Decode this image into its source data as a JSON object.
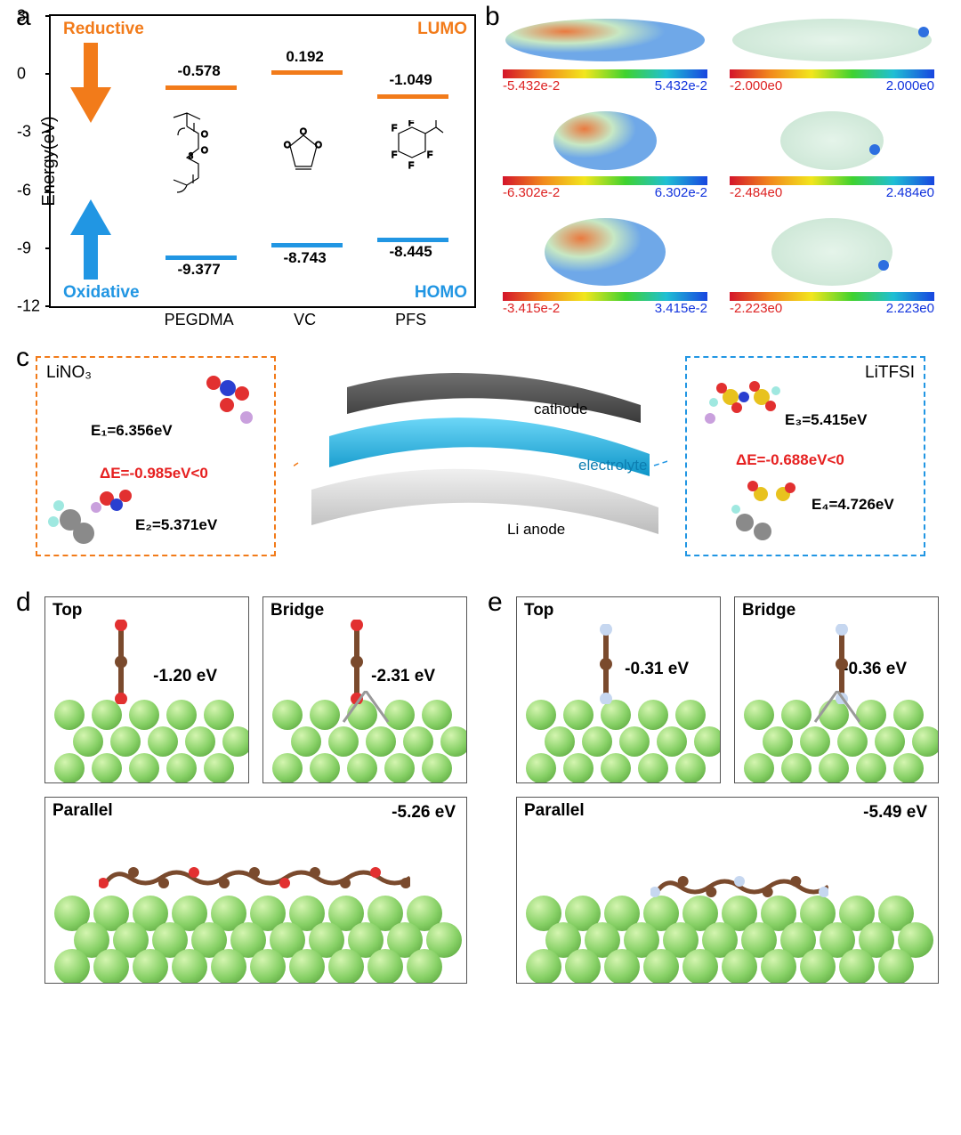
{
  "panel_a": {
    "label": "a",
    "y_axis": {
      "label": "Energy(eV)",
      "ticks": [
        3,
        0,
        -3,
        -6,
        -9,
        -12
      ],
      "ymin": -12,
      "ymax": 3,
      "fontsize": 20
    },
    "x_categories": [
      "PEGDMA",
      "VC",
      "PFS"
    ],
    "reductive": {
      "text": "Reductive",
      "color": "#f27b1a"
    },
    "oxidative": {
      "text": "Oxidative",
      "color": "#2196e3"
    },
    "lumo_label": {
      "text": "LUMO",
      "color": "#f27b1a"
    },
    "homo_label": {
      "text": "HOMO",
      "color": "#2196e3"
    },
    "lumo": {
      "color": "#f27b1a",
      "values": [
        -0.578,
        0.192,
        -1.049
      ]
    },
    "homo": {
      "color": "#2196e3",
      "values": [
        -9.377,
        -8.743,
        -8.445
      ]
    }
  },
  "panel_b": {
    "label": "b",
    "gradient_stops": [
      "#d4152a",
      "#f28a1d",
      "#f2e61d",
      "#3fd22f",
      "#1fbfd4",
      "#1845e0"
    ],
    "rows": [
      {
        "left": {
          "lo": "-5.432e-2",
          "hi": "5.432e-2"
        },
        "right": {
          "lo": "-2.000e0",
          "hi": "2.000e0"
        }
      },
      {
        "left": {
          "lo": "-6.302e-2",
          "hi": "6.302e-2"
        },
        "right": {
          "lo": "-2.484e0",
          "hi": "2.484e0"
        }
      },
      {
        "left": {
          "lo": "-3.415e-2",
          "hi": "3.415e-2"
        },
        "right": {
          "lo": "-2.223e0",
          "hi": "2.223e0"
        }
      }
    ]
  },
  "panel_c": {
    "label": "c",
    "left_box": {
      "border_color": "#f27b1a",
      "title": "LiNO₃",
      "e1": "E₁=6.356eV",
      "e2": "E₂=5.371eV",
      "delta": "ΔE=-0.985eV<0"
    },
    "right_box": {
      "border_color": "#2196e3",
      "title": "LiTFSI",
      "e3": "E₃=5.415eV",
      "e4": "E₄=4.726eV",
      "delta": "ΔE=-0.688eV<0"
    },
    "layers": {
      "cathode": {
        "label": "cathode",
        "color": "#4d4d4d"
      },
      "electrolyte": {
        "label": "electrolyte",
        "color": "#29b8ef"
      },
      "anode": {
        "label": "Li anode",
        "color": "#d6d6d6"
      }
    },
    "atom_colors": {
      "O": "#e23030",
      "N": "#2a3fd0",
      "Li": "#c9a0dd",
      "F": "#9fe8e0",
      "S": "#e8c21e",
      "C": "#8a8a8a",
      "H": "#e6e6e6"
    }
  },
  "panel_d": {
    "label": "d",
    "top": {
      "title": "Top",
      "value": "-1.20 eV"
    },
    "bridge": {
      "title": "Bridge",
      "value": "-2.31 eV"
    },
    "parallel": {
      "title": "Parallel",
      "value": "-5.26 eV"
    },
    "li_color": "#86d065",
    "mol_colors": {
      "C": "#7a4a2d",
      "O": "#e23030",
      "H": "#f4d7d7"
    }
  },
  "panel_e": {
    "label": "e",
    "top": {
      "title": "Top",
      "value": "-0.31 eV"
    },
    "bridge": {
      "title": "Bridge",
      "value": "-0.36 eV"
    },
    "parallel": {
      "title": "Parallel",
      "value": "-5.49 eV"
    },
    "mol_colors": {
      "C": "#7a4a2d",
      "F": "#c6d7f0"
    }
  }
}
